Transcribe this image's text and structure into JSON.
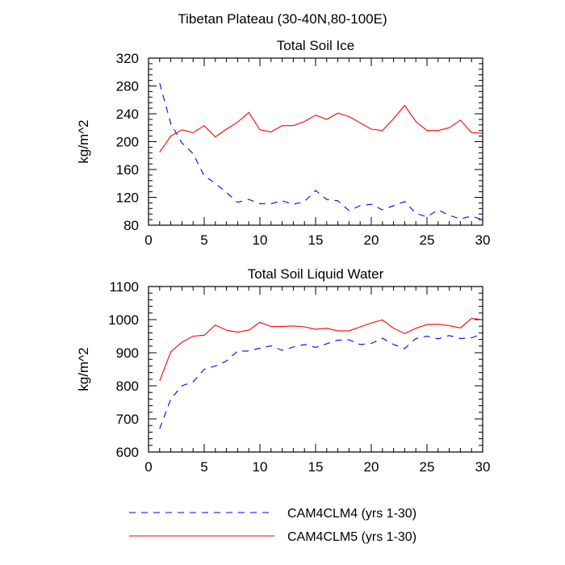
{
  "figure_title": "Tibetan Plateau (30-40N,80-100E)",
  "legend": [
    {
      "label": "CAM4CLM4 (yrs 1-30)",
      "color": "#0000ff",
      "dash": "dashed"
    },
    {
      "label": "CAM4CLM5 (yrs 1-30)",
      "color": "#ff0000",
      "dash": "solid"
    }
  ],
  "chart_data": [
    {
      "type": "line",
      "title": "Total Soil Ice",
      "ylabel": "kg/m^2",
      "xlabel": "",
      "xlim": [
        0,
        30
      ],
      "ylim": [
        80,
        320
      ],
      "xticks": [
        0,
        5,
        10,
        15,
        20,
        25,
        30
      ],
      "yticks": [
        80,
        120,
        160,
        200,
        240,
        280,
        320
      ],
      "x": [
        1,
        2,
        3,
        4,
        5,
        6,
        7,
        8,
        9,
        10,
        11,
        12,
        13,
        14,
        15,
        16,
        17,
        18,
        19,
        20,
        21,
        22,
        23,
        24,
        25,
        26,
        27,
        28,
        29,
        30
      ],
      "series": [
        {
          "name": "CAM4CLM4 (yrs 1-30)",
          "color": "#0000ff",
          "dash": "dashed",
          "values": [
            284,
            226,
            198,
            183,
            151,
            140,
            127,
            113,
            117,
            111,
            111,
            115,
            110,
            114,
            130,
            117,
            115,
            101,
            108,
            110,
            102,
            108,
            114,
            97,
            92,
            102,
            94,
            89,
            93,
            88
          ]
        },
        {
          "name": "CAM4CLM5 (yrs 1-30)",
          "color": "#ff0000",
          "dash": "solid",
          "values": [
            185,
            208,
            217,
            213,
            223,
            207,
            218,
            228,
            242,
            217,
            214,
            223,
            223,
            229,
            238,
            232,
            241,
            236,
            227,
            218,
            216,
            233,
            252,
            229,
            216,
            216,
            220,
            231,
            213,
            212
          ]
        }
      ]
    },
    {
      "type": "line",
      "title": "Total Soil Liquid Water",
      "ylabel": "kg/m^2",
      "xlabel": "",
      "xlim": [
        0,
        30
      ],
      "ylim": [
        600,
        1100
      ],
      "xticks": [
        0,
        5,
        10,
        15,
        20,
        25,
        30
      ],
      "yticks": [
        600,
        700,
        800,
        900,
        1000,
        1100
      ],
      "x": [
        1,
        2,
        3,
        4,
        5,
        6,
        7,
        8,
        9,
        10,
        11,
        12,
        13,
        14,
        15,
        16,
        17,
        18,
        19,
        20,
        21,
        22,
        23,
        24,
        25,
        26,
        27,
        28,
        29,
        30
      ],
      "series": [
        {
          "name": "CAM4CLM4 (yrs 1-30)",
          "color": "#0000ff",
          "dash": "dashed",
          "values": [
            670,
            760,
            800,
            812,
            850,
            860,
            875,
            905,
            905,
            914,
            921,
            907,
            917,
            925,
            916,
            927,
            938,
            939,
            925,
            928,
            944,
            925,
            913,
            943,
            950,
            942,
            952,
            943,
            945,
            958
          ]
        },
        {
          "name": "CAM4CLM5 (yrs 1-30)",
          "color": "#ff0000",
          "dash": "solid",
          "values": [
            815,
            903,
            932,
            950,
            953,
            984,
            968,
            962,
            968,
            992,
            979,
            979,
            981,
            978,
            971,
            974,
            966,
            966,
            978,
            990,
            999,
            974,
            958,
            974,
            985,
            986,
            982,
            975,
            1004,
            1000
          ]
        }
      ]
    }
  ]
}
